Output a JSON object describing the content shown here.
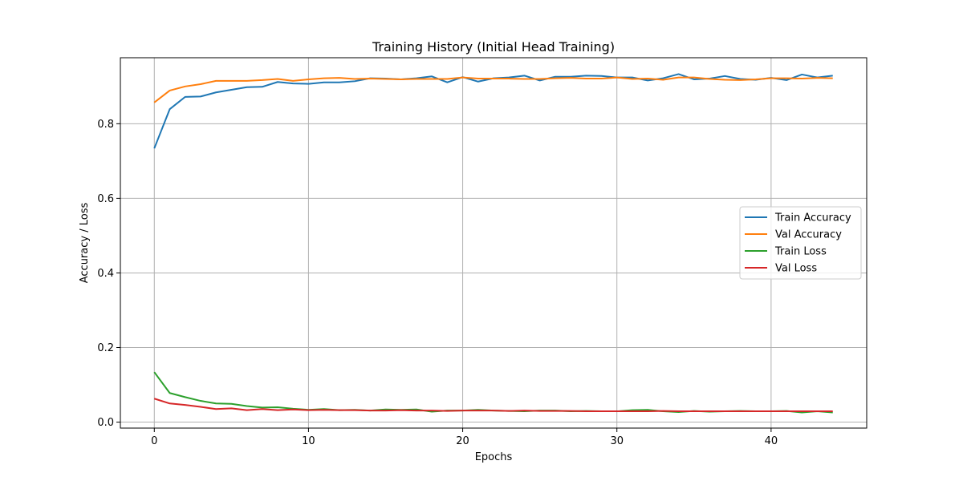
{
  "chart_data": {
    "type": "line",
    "title": "Training History (Initial Head Training)",
    "xlabel": "Epochs",
    "ylabel": "Accuracy / Loss",
    "xlim": [
      -2.2,
      46.2
    ],
    "ylim": [
      -0.016,
      0.977
    ],
    "xticks": [
      0,
      10,
      20,
      30,
      40
    ],
    "yticks": [
      0.0,
      0.2,
      0.4,
      0.6,
      0.8
    ],
    "grid": true,
    "legend_position": "center-right",
    "x": [
      0,
      1,
      2,
      3,
      4,
      5,
      6,
      7,
      8,
      9,
      10,
      11,
      12,
      13,
      14,
      15,
      16,
      17,
      18,
      19,
      20,
      21,
      22,
      23,
      24,
      25,
      26,
      27,
      28,
      29,
      30,
      31,
      32,
      33,
      34,
      35,
      36,
      37,
      38,
      39,
      40,
      41,
      42,
      43,
      44
    ],
    "series": [
      {
        "name": "Train Accuracy",
        "color": "#1f77b4",
        "values": [
          0.734,
          0.839,
          0.872,
          0.873,
          0.884,
          0.891,
          0.898,
          0.899,
          0.912,
          0.908,
          0.907,
          0.911,
          0.911,
          0.914,
          0.922,
          0.921,
          0.919,
          0.922,
          0.927,
          0.911,
          0.925,
          0.913,
          0.922,
          0.924,
          0.929,
          0.916,
          0.926,
          0.926,
          0.929,
          0.928,
          0.924,
          0.924,
          0.916,
          0.922,
          0.933,
          0.919,
          0.921,
          0.928,
          0.92,
          0.918,
          0.923,
          0.917,
          0.932,
          0.924,
          0.929
        ]
      },
      {
        "name": "Val Accuracy",
        "color": "#ff7f0e",
        "values": [
          0.857,
          0.889,
          0.9,
          0.906,
          0.915,
          0.915,
          0.915,
          0.917,
          0.92,
          0.915,
          0.919,
          0.922,
          0.923,
          0.92,
          0.921,
          0.92,
          0.919,
          0.92,
          0.92,
          0.92,
          0.924,
          0.921,
          0.921,
          0.921,
          0.92,
          0.92,
          0.922,
          0.923,
          0.921,
          0.921,
          0.924,
          0.92,
          0.921,
          0.918,
          0.924,
          0.924,
          0.92,
          0.918,
          0.917,
          0.919,
          0.922,
          0.922,
          0.921,
          0.923,
          0.922
        ]
      },
      {
        "name": "Train Loss",
        "color": "#2ca02c",
        "values": [
          0.134,
          0.078,
          0.067,
          0.057,
          0.05,
          0.049,
          0.043,
          0.039,
          0.04,
          0.036,
          0.033,
          0.035,
          0.032,
          0.033,
          0.031,
          0.034,
          0.033,
          0.034,
          0.028,
          0.031,
          0.031,
          0.033,
          0.031,
          0.03,
          0.029,
          0.031,
          0.031,
          0.029,
          0.03,
          0.029,
          0.029,
          0.032,
          0.033,
          0.029,
          0.027,
          0.03,
          0.028,
          0.029,
          0.03,
          0.029,
          0.029,
          0.03,
          0.026,
          0.029,
          0.026
        ]
      },
      {
        "name": "Val Loss",
        "color": "#d62728",
        "values": [
          0.063,
          0.05,
          0.046,
          0.041,
          0.035,
          0.037,
          0.032,
          0.035,
          0.032,
          0.034,
          0.032,
          0.033,
          0.032,
          0.032,
          0.031,
          0.031,
          0.032,
          0.031,
          0.031,
          0.03,
          0.031,
          0.031,
          0.031,
          0.03,
          0.031,
          0.03,
          0.03,
          0.03,
          0.029,
          0.029,
          0.029,
          0.029,
          0.029,
          0.03,
          0.029,
          0.029,
          0.029,
          0.029,
          0.029,
          0.029,
          0.029,
          0.029,
          0.029,
          0.029,
          0.029
        ]
      }
    ]
  }
}
